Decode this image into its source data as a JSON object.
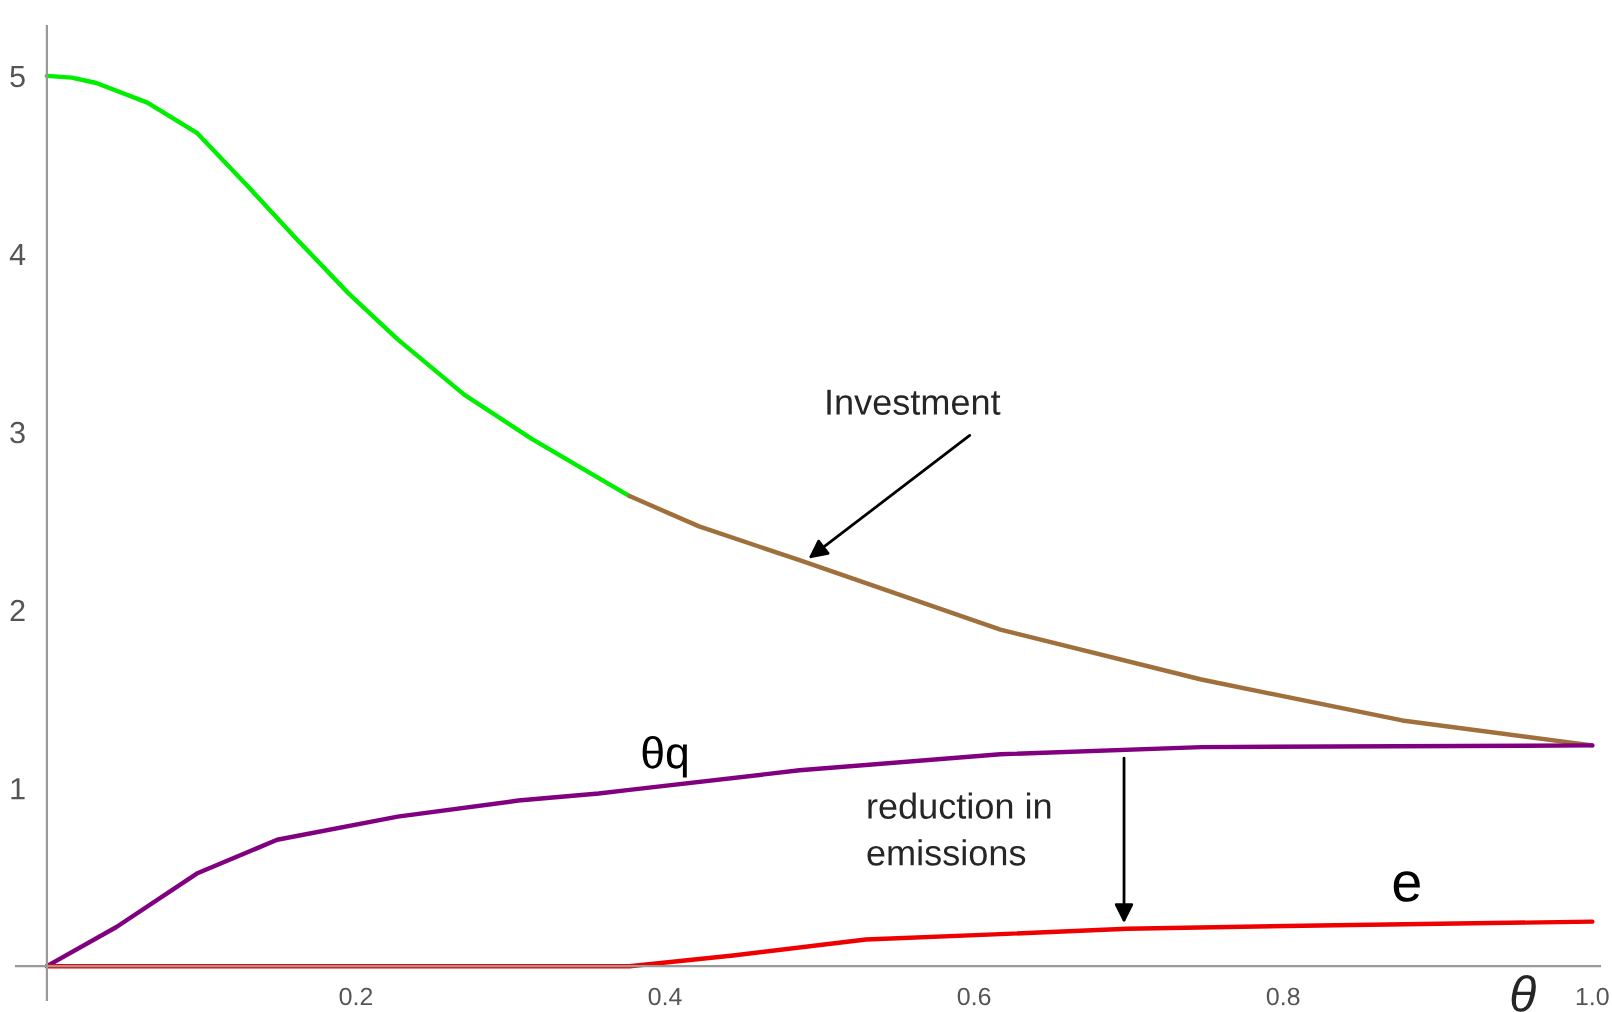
{
  "chart_data": {
    "type": "line",
    "xlabel": "θ",
    "xlim": [
      -0.02,
      1.005
    ],
    "ylim": [
      -0.19,
      5.28
    ],
    "xticks": [
      0.2,
      0.4,
      0.6,
      0.8,
      {
        "value": 1.0,
        "label": "1.0"
      }
    ],
    "yticks": [
      1,
      2,
      3,
      4,
      5
    ],
    "grid": false,
    "legend": false,
    "marker": "none",
    "line_style": "solid",
    "series": [
      {
        "color": "#00ee00",
        "x": [
          0,
          0.016,
          0.032,
          0.065,
          0.097,
          0.13,
          0.162,
          0.195,
          0.227,
          0.27,
          0.314,
          0.377
        ],
        "values": [
          5.0,
          4.99,
          4.96,
          4.85,
          4.68,
          4.38,
          4.08,
          3.78,
          3.52,
          3.21,
          2.96,
          2.64
        ]
      },
      {
        "color": "#a0703c",
        "x": [
          0.377,
          0.422,
          0.487,
          0.617,
          0.747,
          0.877,
          1.0
        ],
        "values": [
          2.64,
          2.47,
          2.28,
          1.89,
          1.61,
          1.38,
          1.24
        ]
      },
      {
        "name": "θq",
        "color": "#800080",
        "x": [
          0,
          0.045,
          0.097,
          0.149,
          0.227,
          0.305,
          0.357,
          0.377,
          0.487,
          0.617,
          0.747,
          1.0
        ],
        "values": [
          0,
          0.22,
          0.52,
          0.71,
          0.84,
          0.93,
          0.97,
          0.99,
          1.1,
          1.19,
          1.23,
          1.24
        ]
      },
      {
        "name": "e",
        "color": "#ee0000",
        "x": [
          0,
          0.377,
          0.444,
          0.53,
          0.617,
          0.699,
          0.834,
          1.0
        ],
        "values": [
          0,
          0,
          0.06,
          0.15,
          0.18,
          0.21,
          0.23,
          0.25
        ]
      }
    ],
    "annotations": [
      {
        "text": "Investment",
        "x": 0.49,
        "y": 2.27
      },
      {
        "text": "reduction in\nemissions",
        "x": 0.697,
        "y": 0.21
      }
    ]
  }
}
